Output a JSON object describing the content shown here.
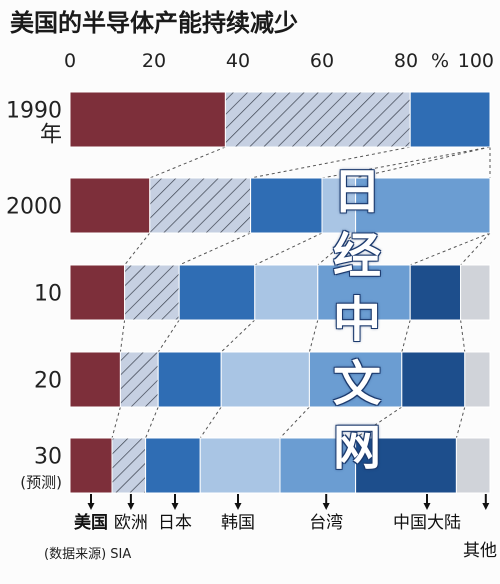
{
  "chart_data": {
    "type": "stacked-bar-horizontal",
    "title": "美国的半导体产能持续减少",
    "unit": "%",
    "xlim": [
      0,
      100
    ],
    "x_ticks": [
      "0",
      "20",
      "40",
      "60",
      "80",
      "100"
    ],
    "categories": [
      {
        "label": "1990",
        "sub": "年"
      },
      {
        "label": "2000",
        "sub": ""
      },
      {
        "label": "10",
        "sub": ""
      },
      {
        "label": "20",
        "sub": ""
      },
      {
        "label": "30",
        "sub": "(预测)"
      }
    ],
    "series": [
      {
        "name": "美国",
        "color": "#7d2f3a",
        "values": [
          37,
          19,
          13,
          12,
          10
        ]
      },
      {
        "name": "欧洲",
        "color": "#c6d0e2",
        "hatch": true,
        "values": [
          44,
          24,
          13,
          9,
          8
        ]
      },
      {
        "name": "日本",
        "color": "#2f6db4",
        "values": [
          19,
          17,
          18,
          15,
          13
        ]
      },
      {
        "name": "韩国",
        "color": "#a9c5e4",
        "values": [
          0,
          8,
          15,
          21,
          19
        ]
      },
      {
        "name": "台湾",
        "color": "#6b9dd2",
        "values": [
          0,
          32,
          22,
          22,
          18
        ]
      },
      {
        "name": "中国大陆",
        "color": "#1d4e8c",
        "values": [
          0,
          0,
          12,
          15,
          24
        ]
      },
      {
        "name": "其他",
        "color": "#d0d3d9",
        "values": [
          0,
          0,
          7,
          6,
          8
        ]
      }
    ],
    "legend_markers": [
      {
        "series": "美国",
        "at": 5
      },
      {
        "series": "欧洲",
        "at": 14.5
      },
      {
        "series": "日本",
        "at": 25
      },
      {
        "series": "韩国",
        "at": 40
      },
      {
        "series": "台湾",
        "at": 61
      },
      {
        "series": "中国大陆",
        "at": 85
      },
      {
        "series": "其他",
        "at": 99
      }
    ]
  },
  "footer": {
    "source": "(数据来源) SIA"
  },
  "watermark": {
    "chars": [
      "日",
      "经",
      "中",
      "文",
      "网"
    ]
  }
}
